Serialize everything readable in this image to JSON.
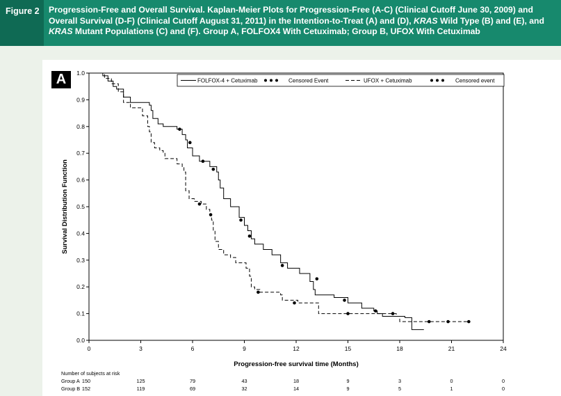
{
  "figure": {
    "label": "Figure 2",
    "caption": "Progression-Free and Overall Survival. Kaplan-Meier Plots for Progression-Free (A-C) (Clinical Cutoff June 30, 2009) and Overall Survival (D-F) (Clinical Cutoff August 31, 2011) in the Intention-to-Treat (A) and (D), KRAS Wild Type (B) and (E), and KRAS Mutant Populations (C) and (F). Group A, FOLFOX4 With Cetuximab; Group B, UFOX With Cetuximab",
    "panel_letter": "A",
    "colors": {
      "header": "#17896d",
      "label_box": "#0f6a54",
      "band": "#ecf2ea"
    }
  },
  "chart_data": {
    "type": "line",
    "xlabel": "Progression-free survival time (Months)",
    "ylabel": "Survival Distribution Function",
    "xlim": [
      0,
      24
    ],
    "ylim": [
      0,
      1
    ],
    "xticks": [
      0,
      3,
      6,
      9,
      12,
      15,
      18,
      21,
      24
    ],
    "yticks": [
      0.0,
      0.1,
      0.2,
      0.3,
      0.4,
      0.5,
      0.6,
      0.7,
      0.8,
      0.9,
      1.0
    ],
    "legend": {
      "position": "top-right"
    },
    "series": [
      {
        "name": "FOLFOX-4 + Cetuximab",
        "censor_label": "Censored Event",
        "style": "solid",
        "steps": [
          [
            0,
            1.0
          ],
          [
            0.8,
            0.99
          ],
          [
            1.1,
            0.97
          ],
          [
            1.4,
            0.95
          ],
          [
            1.6,
            0.94
          ],
          [
            2.0,
            0.91
          ],
          [
            2.4,
            0.89
          ],
          [
            3.5,
            0.88
          ],
          [
            3.6,
            0.86
          ],
          [
            3.7,
            0.83
          ],
          [
            4.0,
            0.81
          ],
          [
            4.3,
            0.8
          ],
          [
            5.1,
            0.79
          ],
          [
            5.4,
            0.77
          ],
          [
            5.6,
            0.75
          ],
          [
            5.7,
            0.72
          ],
          [
            6.0,
            0.69
          ],
          [
            6.4,
            0.67
          ],
          [
            7.0,
            0.65
          ],
          [
            7.4,
            0.63
          ],
          [
            7.5,
            0.6
          ],
          [
            7.6,
            0.57
          ],
          [
            7.8,
            0.53
          ],
          [
            8.2,
            0.5
          ],
          [
            8.7,
            0.46
          ],
          [
            9.0,
            0.43
          ],
          [
            9.2,
            0.41
          ],
          [
            9.4,
            0.38
          ],
          [
            9.6,
            0.36
          ],
          [
            10.1,
            0.34
          ],
          [
            10.6,
            0.32
          ],
          [
            11.1,
            0.29
          ],
          [
            11.5,
            0.27
          ],
          [
            12.2,
            0.25
          ],
          [
            12.8,
            0.22
          ],
          [
            13.0,
            0.19
          ],
          [
            13.1,
            0.17
          ],
          [
            14.2,
            0.16
          ],
          [
            15.0,
            0.14
          ],
          [
            15.8,
            0.12
          ],
          [
            16.5,
            0.11
          ],
          [
            16.7,
            0.1
          ],
          [
            17.0,
            0.09
          ],
          [
            18.3,
            0.085
          ],
          [
            18.7,
            0.04
          ],
          [
            19.4,
            0.04
          ]
        ],
        "censored": [
          [
            5.25,
            0.79
          ],
          [
            5.85,
            0.74
          ],
          [
            6.6,
            0.67
          ],
          [
            7.2,
            0.64
          ],
          [
            8.8,
            0.45
          ],
          [
            9.3,
            0.39
          ],
          [
            11.2,
            0.28
          ],
          [
            13.2,
            0.23
          ],
          [
            14.8,
            0.15
          ],
          [
            16.6,
            0.11
          ]
        ]
      },
      {
        "name": "UFOX + Cetuximab",
        "censor_label": "Censored event",
        "style": "dashed",
        "steps": [
          [
            0,
            1.0
          ],
          [
            0.9,
            0.98
          ],
          [
            1.3,
            0.96
          ],
          [
            1.7,
            0.93
          ],
          [
            2.0,
            0.89
          ],
          [
            2.4,
            0.87
          ],
          [
            3.1,
            0.84
          ],
          [
            3.4,
            0.8
          ],
          [
            3.5,
            0.78
          ],
          [
            3.6,
            0.74
          ],
          [
            3.8,
            0.72
          ],
          [
            4.1,
            0.71
          ],
          [
            4.3,
            0.7
          ],
          [
            4.4,
            0.68
          ],
          [
            5.1,
            0.66
          ],
          [
            5.4,
            0.65
          ],
          [
            5.5,
            0.63
          ],
          [
            5.6,
            0.6
          ],
          [
            5.6,
            0.56
          ],
          [
            5.8,
            0.53
          ],
          [
            6.1,
            0.52
          ],
          [
            6.5,
            0.51
          ],
          [
            6.8,
            0.49
          ],
          [
            7.0,
            0.47
          ],
          [
            7.1,
            0.45
          ],
          [
            7.2,
            0.41
          ],
          [
            7.3,
            0.37
          ],
          [
            7.5,
            0.34
          ],
          [
            7.8,
            0.32
          ],
          [
            8.2,
            0.31
          ],
          [
            8.5,
            0.29
          ],
          [
            9.1,
            0.27
          ],
          [
            9.3,
            0.24
          ],
          [
            9.4,
            0.2
          ],
          [
            9.6,
            0.19
          ],
          [
            9.9,
            0.18
          ],
          [
            11.1,
            0.17
          ],
          [
            11.2,
            0.15
          ],
          [
            12.1,
            0.14
          ],
          [
            13.3,
            0.1
          ],
          [
            17.4,
            0.1
          ],
          [
            17.8,
            0.09
          ],
          [
            18.0,
            0.07
          ],
          [
            22.0,
            0.07
          ]
        ],
        "censored": [
          [
            6.4,
            0.51
          ],
          [
            7.05,
            0.47
          ],
          [
            9.8,
            0.18
          ],
          [
            11.9,
            0.14
          ],
          [
            15.0,
            0.1
          ],
          [
            17.6,
            0.1
          ],
          [
            19.7,
            0.07
          ],
          [
            20.8,
            0.07
          ],
          [
            22.0,
            0.07
          ]
        ]
      }
    ],
    "risk_table": {
      "title": "Number of subjects at risk",
      "times": [
        0,
        3,
        6,
        9,
        12,
        15,
        18,
        21,
        24
      ],
      "rows": [
        {
          "label": "Group A",
          "values": [
            "150",
            "125",
            "79",
            "43",
            "18",
            "9",
            "3",
            "0",
            "0"
          ]
        },
        {
          "label": "Group B",
          "values": [
            "152",
            "119",
            "69",
            "32",
            "14",
            "9",
            "5",
            "1",
            "0"
          ]
        }
      ]
    }
  }
}
